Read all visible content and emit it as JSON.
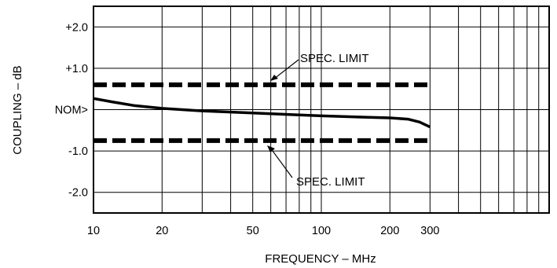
{
  "chart_data": {
    "type": "line",
    "xlabel": "FREQUENCY – MHz",
    "ylabel": "COUPLING – dB",
    "x_scale": "log",
    "xlim": [
      10,
      1000
    ],
    "ylim": [
      -2.5,
      2.5
    ],
    "x_ticks": [
      {
        "value": 10,
        "label": "10"
      },
      {
        "value": 20,
        "label": "20"
      },
      {
        "value": 50,
        "label": "50"
      },
      {
        "value": 100,
        "label": "100"
      },
      {
        "value": 200,
        "label": "200"
      },
      {
        "value": 300,
        "label": "300"
      }
    ],
    "y_ticks": [
      {
        "value": 2.0,
        "label": "+2.0"
      },
      {
        "value": 1.0,
        "label": "+1.0"
      },
      {
        "value": 0.0,
        "label": "NOM>"
      },
      {
        "value": -1.0,
        "label": "-1.0"
      },
      {
        "value": -2.0,
        "label": "-2.0"
      }
    ],
    "grid": true,
    "series": [
      {
        "style": "solid",
        "x": [
          10,
          12,
          15,
          20,
          30,
          50,
          80,
          100,
          150,
          200,
          240,
          270,
          300
        ],
        "y": [
          0.27,
          0.19,
          0.1,
          0.03,
          -0.03,
          -0.08,
          -0.13,
          -0.15,
          -0.18,
          -0.2,
          -0.23,
          -0.3,
          -0.42
        ]
      },
      {
        "style": "dashed",
        "x": [
          10,
          300
        ],
        "y": [
          0.6,
          0.6
        ]
      },
      {
        "style": "dashed",
        "x": [
          10,
          300
        ],
        "y": [
          -0.75,
          -0.75
        ]
      }
    ],
    "annotations": [
      {
        "text": "SPEC. LIMIT",
        "points_to": "upper"
      },
      {
        "text": "SPEC. LIMIT",
        "points_to": "lower"
      }
    ]
  }
}
